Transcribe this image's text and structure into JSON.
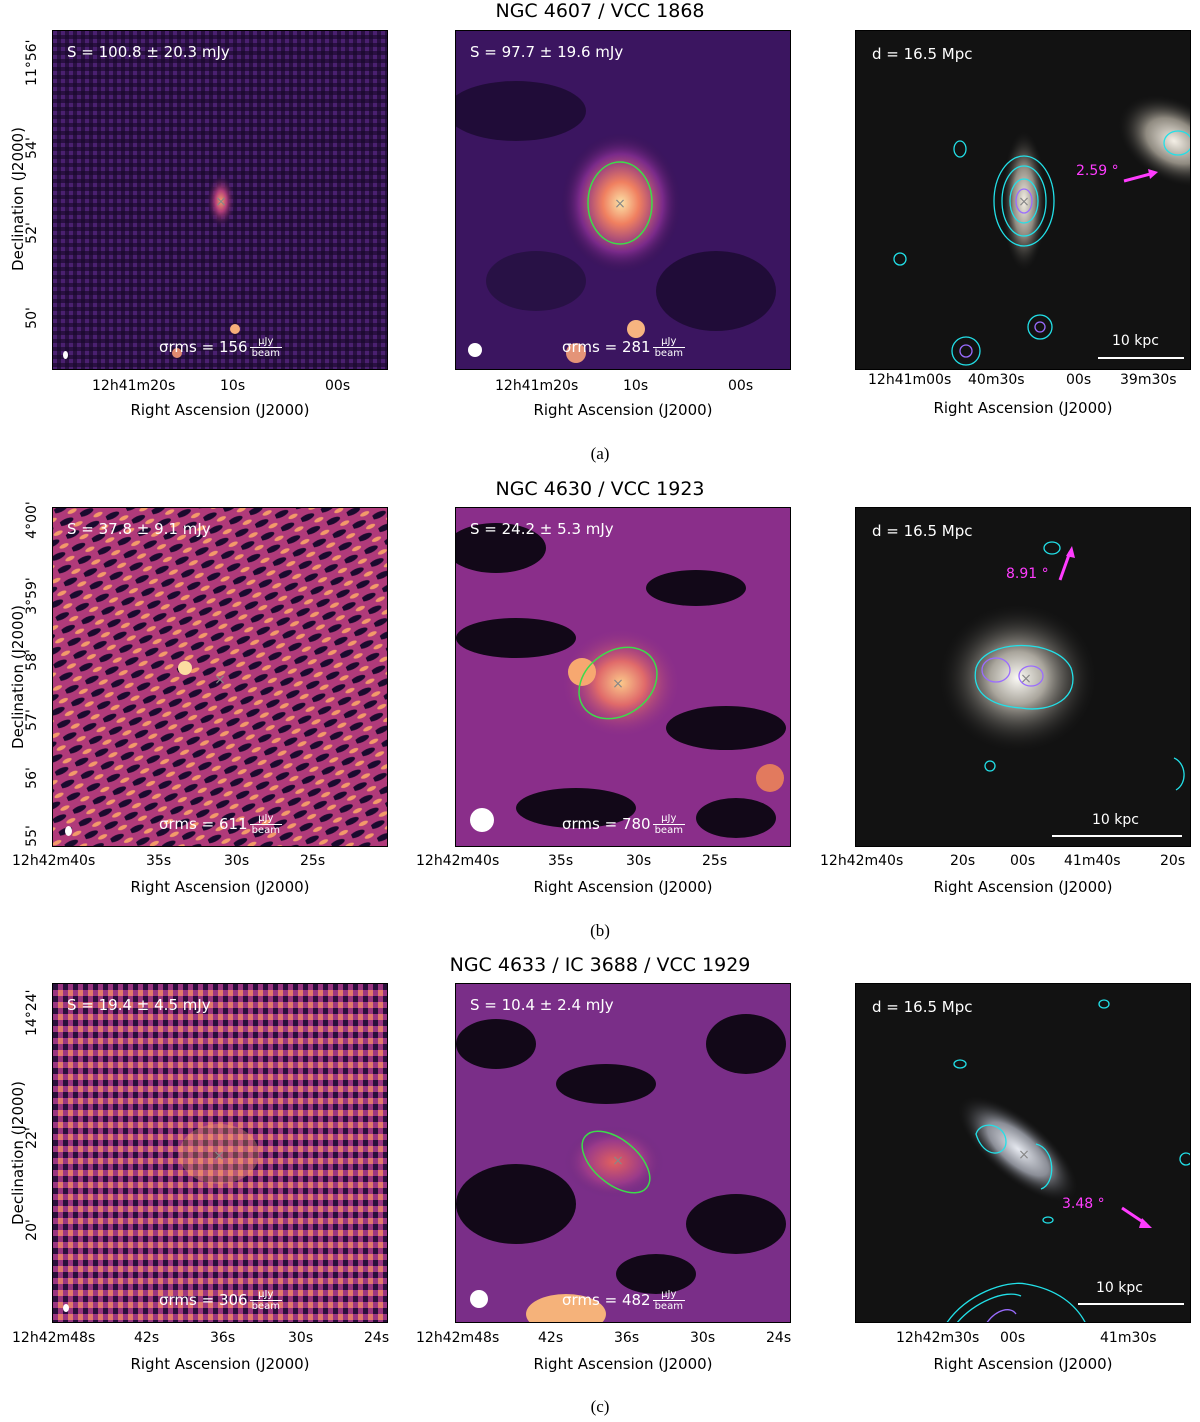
{
  "rows": [
    {
      "title": "NGC 4607 / VCC 1868",
      "caption": "(a)",
      "left": {
        "flux": "S = 100.8 ± 20.3 mJy",
        "rms": "σrms = 156",
        "rms_unit_num": "μJy",
        "rms_unit_den": "beam"
      },
      "mid": {
        "flux": "S = 97.7 ± 19.6 mJy",
        "rms": "σrms = 281",
        "rms_unit_num": "μJy",
        "rms_unit_den": "beam"
      },
      "right": {
        "distance": "d = 16.5 Mpc",
        "scale": "10 kpc",
        "angle": "2.59 °"
      },
      "xticks_radio": [
        "12h41m20s",
        "10s",
        "00s"
      ],
      "xticks_optical": [
        "12h41m00s",
        "40m30s",
        "00s",
        "39m30s"
      ],
      "yticks": [
        "11°56'",
        "54'",
        "52'",
        "50'"
      ]
    },
    {
      "title": "NGC 4630 / VCC 1923",
      "caption": "(b)",
      "left": {
        "flux": "S = 37.8 ± 9.1 mJy",
        "rms": "σrms = 611",
        "rms_unit_num": "μJy",
        "rms_unit_den": "beam"
      },
      "mid": {
        "flux": "S = 24.2 ± 5.3 mJy",
        "rms": "σrms = 780",
        "rms_unit_num": "μJy",
        "rms_unit_den": "beam"
      },
      "right": {
        "distance": "d = 16.5 Mpc",
        "scale": "10 kpc",
        "angle": "8.91 °"
      },
      "xticks_radio": [
        "12h42m40s",
        "35s",
        "30s",
        "25s"
      ],
      "xticks_optical": [
        "12h42m40s",
        "20s",
        "00s",
        "41m40s",
        "20s"
      ],
      "yticks": [
        "4°00'",
        "3°59'",
        "58'",
        "57'",
        "56'",
        "55'"
      ]
    },
    {
      "title": "NGC 4633 / IC 3688 / VCC 1929",
      "caption": "(c)",
      "left": {
        "flux": "S = 19.4 ± 4.5 mJy",
        "rms": "σrms = 306",
        "rms_unit_num": "μJy",
        "rms_unit_den": "beam"
      },
      "mid": {
        "flux": "S = 10.4 ± 2.4 mJy",
        "rms": "σrms = 482",
        "rms_unit_num": "μJy",
        "rms_unit_den": "beam"
      },
      "right": {
        "distance": "d = 16.5 Mpc",
        "scale": "10 kpc",
        "angle": "3.48 °"
      },
      "xticks_radio": [
        "12h42m48s",
        "42s",
        "36s",
        "30s",
        "24s"
      ],
      "xticks_optical": [
        "12h42m30s",
        "00s",
        "41m30s"
      ],
      "yticks": [
        "14°24'",
        "22'",
        "20'"
      ]
    }
  ],
  "axis_labels": {
    "x": "Right Ascension (J2000)",
    "y": "Declination (J2000)"
  },
  "colors": {
    "radio_low": "#1a0a2e",
    "radio_mid": "#6b2a8a",
    "radio_high": "#f7b07a",
    "ellipse": "#3ddc4a",
    "contour_cyan": "#22e0e8",
    "contour_violet": "#9a6cff",
    "arrow": "#ff3cff"
  }
}
